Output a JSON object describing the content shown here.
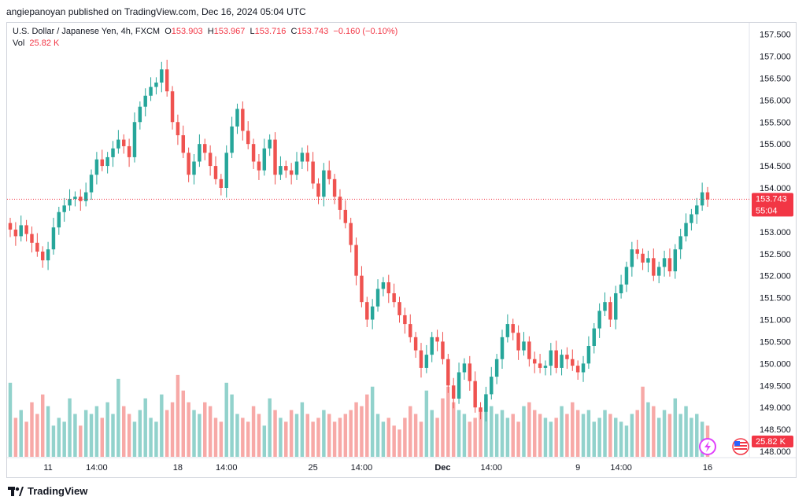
{
  "header": {
    "publisher": "angiepanoyan published on TradingView.com, Dec 16, 2024 05:04 UTC"
  },
  "legend": {
    "symbol": "U.S. Dollar / Japanese Yen, 4h, FXCM",
    "o_label": "O",
    "o": "153.903",
    "h_label": "H",
    "h": "153.967",
    "l_label": "L",
    "l": "153.716",
    "c_label": "C",
    "c": "153.743",
    "change": "−0.160 (−0.10%)",
    "vol_label": "Vol",
    "vol": "25.82 K"
  },
  "price_label": {
    "value": "153.743",
    "countdown": "55:04"
  },
  "vol_label_box": "25.82 K",
  "footer": {
    "brand": "TradingView"
  },
  "colors": {
    "up": "#26a69a",
    "down": "#ef5350",
    "up_vol": "#92d2cc",
    "down_vol": "#f7a9a7",
    "last": "#f23645"
  },
  "chart_data": {
    "type": "candlestick",
    "title": "U.S. Dollar / Japanese Yen, 4h, FXCM",
    "ylim": [
      148.0,
      157.6
    ],
    "y_ticks": [
      "157.500",
      "157.000",
      "156.500",
      "156.000",
      "155.500",
      "155.000",
      "154.500",
      "154.000",
      "153.500",
      "153.000",
      "152.500",
      "152.000",
      "151.500",
      "151.000",
      "150.500",
      "150.000",
      "149.500",
      "149.000",
      "148.500",
      "148.000"
    ],
    "x_ticks": [
      "11",
      "14:00",
      "18",
      "14:00",
      "25",
      "14:00",
      "Dec",
      "14:00",
      "9",
      "14:00",
      "16"
    ],
    "last_price": 153.743,
    "close": [
      153.05,
      152.9,
      153.15,
      152.95,
      152.75,
      152.55,
      152.35,
      152.6,
      153.1,
      153.45,
      153.6,
      153.75,
      153.8,
      153.7,
      153.9,
      154.3,
      154.65,
      154.5,
      154.7,
      154.9,
      155.1,
      154.95,
      154.7,
      155.5,
      155.85,
      156.1,
      156.3,
      156.4,
      156.7,
      156.2,
      155.5,
      155.2,
      154.8,
      154.3,
      154.6,
      155.0,
      154.8,
      154.5,
      154.2,
      154.0,
      154.8,
      155.4,
      155.8,
      155.3,
      155.0,
      154.6,
      154.4,
      154.9,
      155.1,
      154.3,
      154.5,
      154.4,
      154.3,
      154.6,
      154.8,
      154.6,
      154.1,
      153.8,
      154.4,
      154.2,
      153.8,
      153.5,
      153.2,
      152.7,
      152.0,
      151.4,
      151.0,
      151.3,
      151.7,
      151.85,
      151.6,
      151.4,
      151.1,
      150.9,
      150.6,
      150.3,
      149.9,
      150.2,
      150.6,
      150.5,
      150.1,
      149.5,
      149.2,
      149.8,
      150.0,
      149.6,
      149.0,
      148.9,
      149.3,
      149.7,
      150.1,
      150.6,
      150.9,
      150.7,
      150.3,
      150.5,
      150.1,
      150.0,
      149.9,
      149.95,
      150.3,
      149.9,
      150.2,
      150.1,
      149.95,
      149.8,
      150.0,
      150.4,
      150.8,
      151.2,
      151.4,
      151.0,
      151.6,
      151.8,
      152.2,
      152.6,
      152.5,
      152.3,
      152.4,
      152.0,
      152.2,
      152.4,
      152.1,
      152.6,
      152.9,
      153.2,
      153.4,
      153.6,
      153.9,
      153.74
    ],
    "volume": [
      9.5,
      5.0,
      6.0,
      4.5,
      7.0,
      5.5,
      8.0,
      6.5,
      4.0,
      5.0,
      4.5,
      7.5,
      5.5,
      4.0,
      6.0,
      5.5,
      6.5,
      5.0,
      7.0,
      5.5,
      10.0,
      6.5,
      5.5,
      4.5,
      6.0,
      7.5,
      5.0,
      4.5,
      8.0,
      6.0,
      7.0,
      10.5,
      8.5,
      7.0,
      6.0,
      5.5,
      7.0,
      6.5,
      5.0,
      4.5,
      9.5,
      8.0,
      5.5,
      5.0,
      4.5,
      6.5,
      5.5,
      4.0,
      7.5,
      6.0,
      5.0,
      4.5,
      6.0,
      5.5,
      7.0,
      5.5,
      4.5,
      5.0,
      6.0,
      5.5,
      4.5,
      5.0,
      5.5,
      6.0,
      7.0,
      6.5,
      8.0,
      9.0,
      5.5,
      4.5,
      5.0,
      4.0,
      3.5,
      5.0,
      6.5,
      5.5,
      4.5,
      8.5,
      6.0,
      5.0,
      7.5,
      9.0,
      7.0,
      6.0,
      5.5,
      4.5,
      5.0,
      6.0,
      7.5,
      6.5,
      5.5,
      6.0,
      5.0,
      5.5,
      4.5,
      6.5,
      7.0,
      6.0,
      5.5,
      5.0,
      4.5,
      5.0,
      6.5,
      5.5,
      7.0,
      6.0,
      5.5,
      6.0,
      4.5,
      5.0,
      6.0,
      5.5,
      5.0,
      4.5,
      4.0,
      5.5,
      6.0,
      9.0,
      7.0,
      6.5,
      5.0,
      6.0,
      5.5,
      7.5,
      5.5,
      6.5,
      5.0,
      5.5,
      4.5,
      4.0
    ],
    "volume_ylim": [
      0,
      12
    ]
  }
}
